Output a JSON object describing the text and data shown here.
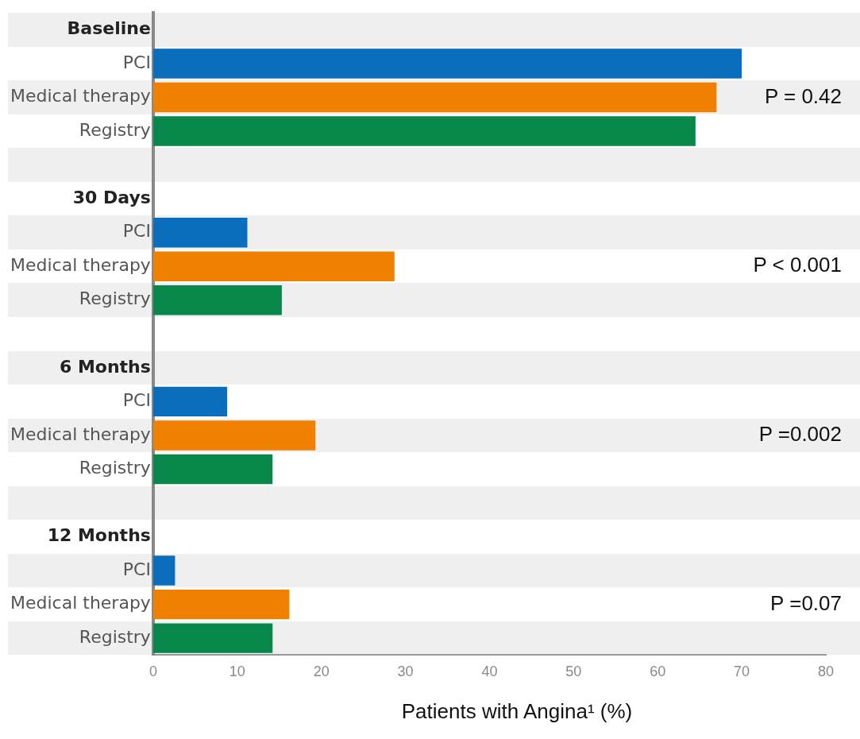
{
  "chart_data": {
    "type": "bar",
    "orientation": "horizontal",
    "xlabel": "Patients with Angina¹ (%)",
    "categories": [
      "Baseline",
      "PCI",
      "Medical therapy",
      "Registry",
      null,
      "30 Days",
      "PCI",
      "Medical therapy",
      "Registry",
      null,
      "6 Months",
      "PCI",
      "Medical therapy",
      "Registry",
      null,
      "12 Months",
      "PCI",
      "Medical therapy",
      "Registry"
    ],
    "values": [
      null,
      70,
      67,
      64.5,
      null,
      null,
      11.2,
      28.7,
      15.3,
      null,
      null,
      8.8,
      19.3,
      14.2,
      null,
      null,
      2.6,
      16.2,
      14.2
    ],
    "colors": [
      "#0a6ebd",
      "#0a6ebd",
      "#f08000",
      "#08874a",
      "#0a6ebd",
      "#0a6ebd",
      "#0a6ebd",
      "#f08000",
      "#08874a",
      "#0a6ebd",
      "#0a6ebd",
      "#0a6ebd",
      "#f08000",
      "#08874a",
      "#0a6ebd",
      "#0a6ebd",
      "#0a6ebd",
      "#f08000",
      "#08874a"
    ],
    "xlim": [
      0,
      80
    ],
    "xticks": [
      0,
      10,
      20,
      30,
      40,
      50,
      60,
      70,
      80
    ],
    "grid": false,
    "legend": false,
    "annotations": [
      "P = 0.42",
      "P < 0.001",
      "P =0.002",
      "P =0.07"
    ]
  }
}
